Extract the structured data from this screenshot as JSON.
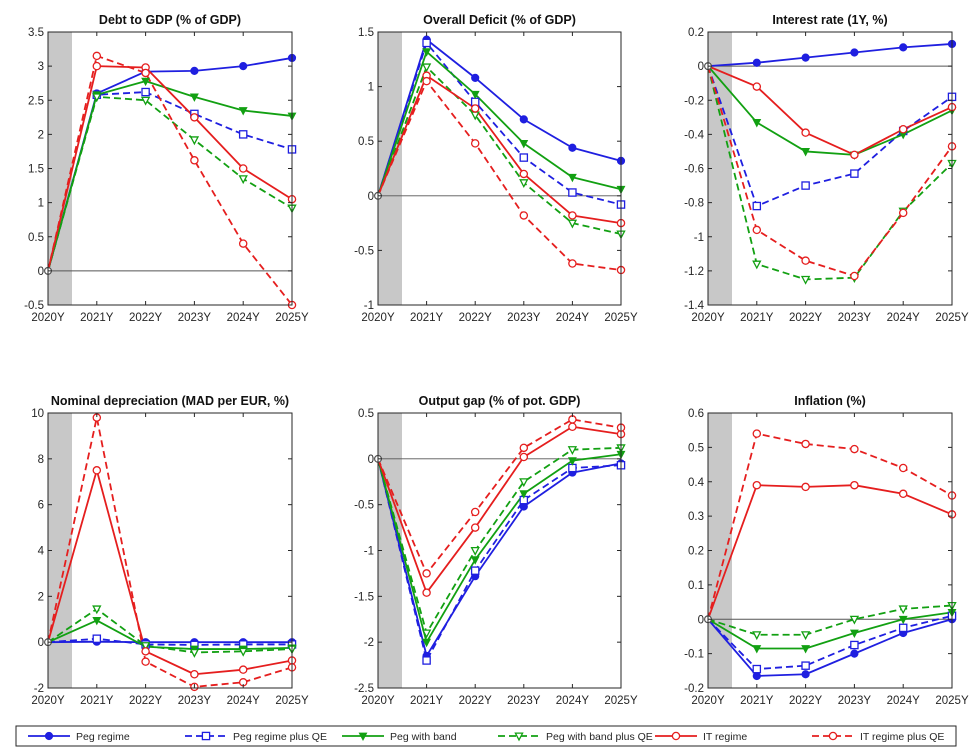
{
  "chart_data": {
    "type": "line",
    "x": [
      "2020Y",
      "2021Y",
      "2022Y",
      "2023Y",
      "2024Y",
      "2025Y"
    ],
    "legend": {
      "placement": "bottom",
      "entries": [
        {
          "key": "peg",
          "label": "Peg regime",
          "color": "#1f1fe0",
          "dashed": false,
          "marker": "circle-filled"
        },
        {
          "key": "peg_qe",
          "label": "Peg regime plus QE",
          "color": "#1f1fe0",
          "dashed": true,
          "marker": "square-open"
        },
        {
          "key": "band",
          "label": "Peg with band",
          "color": "#12a012",
          "dashed": false,
          "marker": "triangle-filled"
        },
        {
          "key": "band_qe",
          "label": "Peg with band plus QE",
          "color": "#12a012",
          "dashed": true,
          "marker": "triangle-open"
        },
        {
          "key": "it",
          "label": "IT regime",
          "color": "#e51e1e",
          "dashed": false,
          "marker": "circle-open"
        },
        {
          "key": "it_qe",
          "label": "IT regime plus QE",
          "color": "#e51e1e",
          "dashed": true,
          "marker": "circle-open"
        }
      ]
    },
    "panels": [
      {
        "title": "Debt to GDP (% of GDP)",
        "ylim": [
          -0.5,
          3.5
        ],
        "yticks": [
          -0.5,
          0,
          0.5,
          1,
          1.5,
          2,
          2.5,
          3,
          3.5
        ],
        "yticklabels": [
          "-0.5",
          "0",
          "0.5",
          "1",
          "1.5",
          "2",
          "2.5",
          "3",
          "3.5"
        ],
        "series": {
          "peg": [
            0,
            2.6,
            2.92,
            2.93,
            3.0,
            3.12
          ],
          "peg_qe": [
            0,
            2.58,
            2.62,
            2.3,
            2.0,
            1.78
          ],
          "band": [
            0,
            2.58,
            2.78,
            2.55,
            2.35,
            2.27
          ],
          "band_qe": [
            0,
            2.55,
            2.5,
            1.92,
            1.35,
            0.92
          ],
          "it": [
            0,
            3.0,
            2.98,
            2.25,
            1.5,
            1.05
          ],
          "it_qe": [
            0,
            3.15,
            2.9,
            1.62,
            0.4,
            -0.5
          ]
        }
      },
      {
        "title": "Overall Deficit (% of GDP)",
        "ylim": [
          -1,
          1.5
        ],
        "yticks": [
          -1,
          -0.5,
          0,
          0.5,
          1,
          1.5
        ],
        "yticklabels": [
          "-1",
          "-0.5",
          "0",
          "0.5",
          "1",
          "1.5"
        ],
        "series": {
          "peg": [
            0,
            1.43,
            1.08,
            0.7,
            0.44,
            0.32
          ],
          "peg_qe": [
            0,
            1.4,
            0.86,
            0.35,
            0.03,
            -0.08
          ],
          "band": [
            0,
            1.32,
            0.93,
            0.48,
            0.17,
            0.06
          ],
          "band_qe": [
            0,
            1.18,
            0.74,
            0.12,
            -0.25,
            -0.35
          ],
          "it": [
            0,
            1.1,
            0.8,
            0.2,
            -0.18,
            -0.25
          ],
          "it_qe": [
            0,
            1.05,
            0.48,
            -0.18,
            -0.62,
            -0.68
          ]
        }
      },
      {
        "title": "Interest rate (1Y, %)",
        "ylim": [
          -1.4,
          0.2
        ],
        "yticks": [
          -1.4,
          -1.2,
          -1,
          -0.8,
          -0.6,
          -0.4,
          -0.2,
          0,
          0.2
        ],
        "yticklabels": [
          "-1.4",
          "-1.2",
          "-1",
          "-0.8",
          "-0.6",
          "-0.4",
          "-0.2",
          "0",
          "0.2"
        ],
        "series": {
          "peg": [
            0,
            0.02,
            0.05,
            0.08,
            0.11,
            0.13
          ],
          "peg_qe": [
            0,
            -0.82,
            -0.7,
            -0.63,
            -0.38,
            -0.18
          ],
          "band": [
            0,
            -0.33,
            -0.5,
            -0.52,
            -0.4,
            -0.26
          ],
          "band_qe": [
            0,
            -1.16,
            -1.25,
            -1.24,
            -0.85,
            -0.57
          ],
          "it": [
            0,
            -0.12,
            -0.39,
            -0.52,
            -0.37,
            -0.24
          ],
          "it_qe": [
            0,
            -0.96,
            -1.14,
            -1.23,
            -0.86,
            -0.47
          ]
        }
      },
      {
        "title": "Nominal depreciation (MAD per EUR, %)",
        "ylim": [
          -2,
          10
        ],
        "yticks": [
          -2,
          0,
          2,
          4,
          6,
          8,
          10
        ],
        "yticklabels": [
          "-2",
          "0",
          "2",
          "4",
          "6",
          "8",
          "10"
        ],
        "series": {
          "peg": [
            0,
            0.02,
            0,
            0,
            0,
            0
          ],
          "peg_qe": [
            0,
            0.15,
            -0.1,
            -0.12,
            -0.1,
            -0.1
          ],
          "band": [
            0,
            0.95,
            -0.2,
            -0.3,
            -0.3,
            -0.25
          ],
          "band_qe": [
            0,
            1.45,
            -0.15,
            -0.45,
            -0.4,
            -0.3
          ],
          "it": [
            0,
            7.5,
            -0.4,
            -1.4,
            -1.2,
            -0.8
          ],
          "it_qe": [
            0,
            9.8,
            -0.85,
            -1.95,
            -1.75,
            -1.1
          ]
        }
      },
      {
        "title": "Output gap (% of pot. GDP)",
        "ylim": [
          -2.5,
          0.5
        ],
        "yticks": [
          -2.5,
          -2,
          -1.5,
          -1,
          -0.5,
          0,
          0.5
        ],
        "yticklabels": [
          "-2.5",
          "-2",
          "-1.5",
          "-1",
          "-0.5",
          "0",
          "0.5"
        ],
        "series": {
          "peg": [
            0,
            -2.15,
            -1.28,
            -0.52,
            -0.15,
            -0.05
          ],
          "peg_qe": [
            0,
            -2.2,
            -1.22,
            -0.45,
            -0.1,
            -0.07
          ],
          "band": [
            0,
            -2.0,
            -1.1,
            -0.38,
            -0.02,
            0.05
          ],
          "band_qe": [
            0,
            -1.9,
            -1.0,
            -0.25,
            0.1,
            0.12
          ],
          "it": [
            0,
            -1.46,
            -0.75,
            0.02,
            0.35,
            0.27
          ],
          "it_qe": [
            0,
            -1.25,
            -0.58,
            0.12,
            0.43,
            0.34
          ]
        }
      },
      {
        "title": "Inflation (%)",
        "ylim": [
          -0.2,
          0.6
        ],
        "yticks": [
          -0.2,
          -0.1,
          0,
          0.1,
          0.2,
          0.3,
          0.4,
          0.5,
          0.6
        ],
        "yticklabels": [
          "-0.2",
          "-0.1",
          "0",
          "0.1",
          "0.2",
          "0.3",
          "0.4",
          "0.5",
          "0.6"
        ],
        "series": {
          "peg": [
            0,
            -0.165,
            -0.16,
            -0.1,
            -0.04,
            0.0
          ],
          "peg_qe": [
            0,
            -0.145,
            -0.135,
            -0.075,
            -0.025,
            0.01
          ],
          "band": [
            0,
            -0.085,
            -0.085,
            -0.04,
            0.0,
            0.02
          ],
          "band_qe": [
            0,
            -0.045,
            -0.045,
            0.0,
            0.03,
            0.04
          ],
          "it": [
            0,
            0.39,
            0.385,
            0.39,
            0.365,
            0.305
          ],
          "it_qe": [
            0,
            0.54,
            0.51,
            0.495,
            0.44,
            0.36
          ]
        }
      }
    ]
  }
}
